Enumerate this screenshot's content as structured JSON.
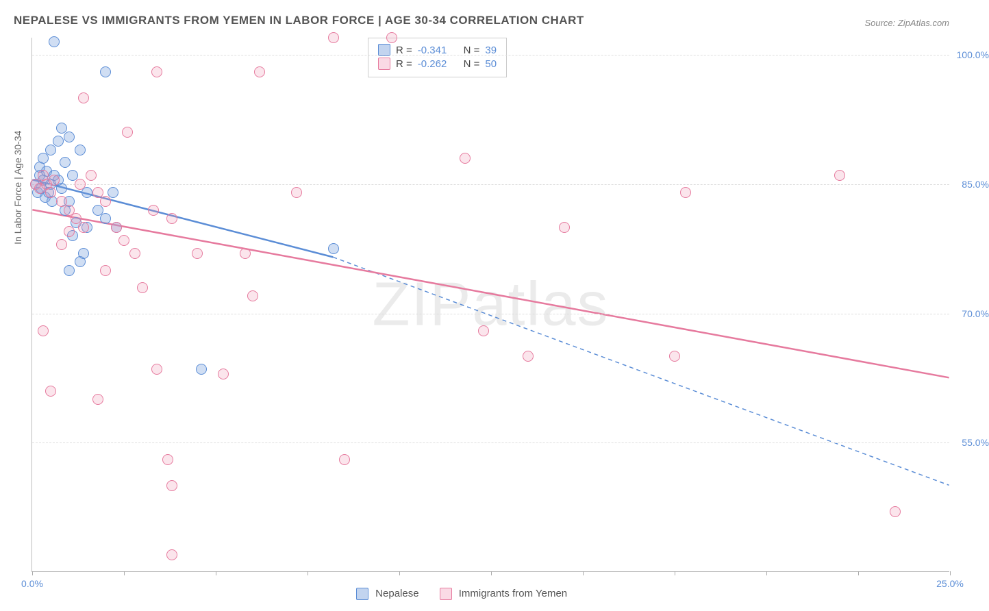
{
  "title": "NEPALESE VS IMMIGRANTS FROM YEMEN IN LABOR FORCE | AGE 30-34 CORRELATION CHART",
  "source": "Source: ZipAtlas.com",
  "watermark": "ZIPatlas",
  "y_axis_label": "In Labor Force | Age 30-34",
  "chart": {
    "type": "scatter",
    "xlim": [
      0,
      25
    ],
    "ylim": [
      40,
      102
    ],
    "x_ticks": [
      0,
      2.5,
      5,
      7.5,
      10,
      12.5,
      15,
      17.5,
      20,
      22.5,
      25
    ],
    "x_tick_labels": {
      "0": "0.0%",
      "25": "25.0%"
    },
    "y_ticks": [
      55,
      70,
      85,
      100
    ],
    "y_tick_labels": {
      "55": "55.0%",
      "70": "70.0%",
      "85": "85.0%",
      "100": "100.0%"
    },
    "grid_color": "#dddddd",
    "background_color": "#ffffff",
    "axis_color": "#bbbbbb",
    "tick_label_color": "#5b8dd6",
    "point_radius": 8,
    "series": [
      {
        "name": "Nepalese",
        "key": "a",
        "color_fill": "rgba(120,160,220,0.35)",
        "color_stroke": "#5b8dd6",
        "r_value": "-0.341",
        "n_value": "39",
        "trend": {
          "x1": 0,
          "y1": 85.5,
          "x2": 8.2,
          "y2": 76.5,
          "dash_x2": 25,
          "dash_y2": 50,
          "stroke_width": 2.5
        },
        "points": [
          [
            0.1,
            85
          ],
          [
            0.2,
            86
          ],
          [
            0.15,
            84
          ],
          [
            0.3,
            85.5
          ],
          [
            0.25,
            84.5
          ],
          [
            0.4,
            86.5
          ],
          [
            0.35,
            83.5
          ],
          [
            0.5,
            85
          ],
          [
            0.45,
            84
          ],
          [
            0.6,
            86
          ],
          [
            0.55,
            83
          ],
          [
            0.7,
            85.5
          ],
          [
            0.8,
            84.5
          ],
          [
            0.9,
            82
          ],
          [
            1.0,
            83
          ],
          [
            1.1,
            79
          ],
          [
            1.2,
            80.5
          ],
          [
            1.3,
            76
          ],
          [
            1.4,
            77
          ],
          [
            1.5,
            80
          ],
          [
            0.3,
            88
          ],
          [
            0.5,
            89
          ],
          [
            0.7,
            90
          ],
          [
            0.8,
            91.5
          ],
          [
            1.0,
            90.5
          ],
          [
            1.3,
            89
          ],
          [
            0.9,
            87.5
          ],
          [
            1.1,
            86
          ],
          [
            0.2,
            87
          ],
          [
            0.6,
            101.5
          ],
          [
            1.5,
            84
          ],
          [
            1.8,
            82
          ],
          [
            2.0,
            81
          ],
          [
            2.3,
            80
          ],
          [
            2.0,
            98
          ],
          [
            2.2,
            84
          ],
          [
            4.6,
            63.5
          ],
          [
            8.2,
            77.5
          ],
          [
            1.0,
            75
          ]
        ]
      },
      {
        "name": "Immigrants from Yemen",
        "key": "b",
        "color_fill": "rgba(240,150,180,0.25)",
        "color_stroke": "#e67a9e",
        "r_value": "-0.262",
        "n_value": "50",
        "trend": {
          "x1": 0,
          "y1": 82,
          "x2": 25,
          "y2": 62.5,
          "stroke_width": 2.5
        },
        "points": [
          [
            0.1,
            85
          ],
          [
            0.2,
            84.5
          ],
          [
            0.3,
            86
          ],
          [
            0.4,
            85
          ],
          [
            0.5,
            84
          ],
          [
            0.6,
            85.5
          ],
          [
            0.8,
            83
          ],
          [
            1.0,
            82
          ],
          [
            1.2,
            81
          ],
          [
            1.4,
            80
          ],
          [
            0.3,
            68
          ],
          [
            0.5,
            61
          ],
          [
            1.3,
            85
          ],
          [
            1.6,
            86
          ],
          [
            1.4,
            95
          ],
          [
            1.8,
            84
          ],
          [
            2.0,
            83
          ],
          [
            2.3,
            80
          ],
          [
            2.5,
            78.5
          ],
          [
            2.8,
            77
          ],
          [
            2.6,
            91
          ],
          [
            3.0,
            73
          ],
          [
            3.3,
            82
          ],
          [
            3.4,
            98
          ],
          [
            3.4,
            63.5
          ],
          [
            3.7,
            53
          ],
          [
            3.8,
            50
          ],
          [
            3.8,
            81
          ],
          [
            3.8,
            42
          ],
          [
            4.5,
            77
          ],
          [
            5.2,
            63
          ],
          [
            5.8,
            77
          ],
          [
            6.2,
            98
          ],
          [
            6.0,
            72
          ],
          [
            7.2,
            84
          ],
          [
            8.2,
            102
          ],
          [
            8.5,
            53
          ],
          [
            9.8,
            102
          ],
          [
            11.8,
            88
          ],
          [
            12.3,
            68
          ],
          [
            13.5,
            65
          ],
          [
            14.5,
            80
          ],
          [
            17.5,
            65
          ],
          [
            17.8,
            84
          ],
          [
            22.0,
            86
          ],
          [
            23.5,
            47
          ],
          [
            1.8,
            60
          ],
          [
            0.8,
            78
          ],
          [
            1.0,
            79.5
          ],
          [
            2.0,
            75
          ]
        ]
      }
    ]
  },
  "legend_top": {
    "r_label": "R =",
    "n_label": "N ="
  },
  "legend_bottom": {
    "a_label": "Nepalese",
    "b_label": "Immigrants from Yemen"
  }
}
